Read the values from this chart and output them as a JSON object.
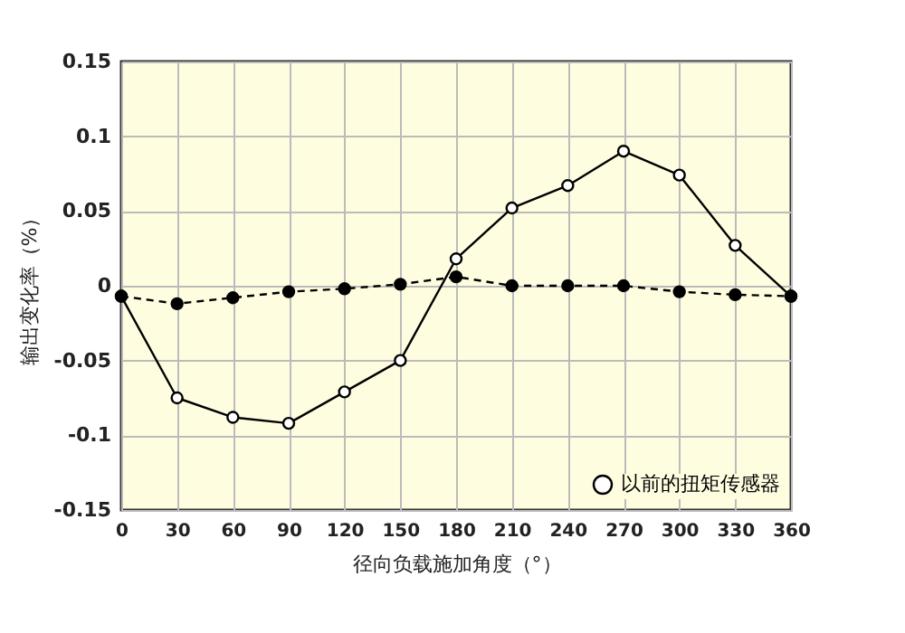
{
  "chart_data": {
    "type": "line",
    "xlabel": "径向负载施加角度（°）",
    "ylabel": "输出变化率（%）",
    "x": [
      0,
      30,
      60,
      90,
      120,
      150,
      180,
      210,
      240,
      270,
      300,
      330,
      360
    ],
    "xlim": [
      0,
      360
    ],
    "xticks": [
      0,
      30,
      60,
      90,
      120,
      150,
      180,
      210,
      240,
      270,
      300,
      330,
      360
    ],
    "ylim": [
      -0.15,
      0.15
    ],
    "yticks": [
      -0.15,
      -0.1,
      -0.05,
      0,
      0.05,
      0.1,
      0.15
    ],
    "grid": true,
    "legend": "bottom right",
    "marker": "circle",
    "series": [
      {
        "name": "以前的扭矩传感器",
        "color": "#000000",
        "line_style": "solid",
        "values": [
          -0.007,
          -0.075,
          -0.088,
          -0.092,
          -0.071,
          -0.05,
          0.018,
          0.052,
          0.067,
          0.09,
          0.074,
          0.027,
          -0.007
        ]
      },
      {
        "color": "#000000",
        "line_style": "dashed",
        "values": [
          -0.007,
          -0.012,
          -0.008,
          -0.004,
          -0.002,
          0.001,
          0.006,
          0,
          0,
          0,
          -0.004,
          -0.006,
          -0.007
        ]
      }
    ]
  }
}
